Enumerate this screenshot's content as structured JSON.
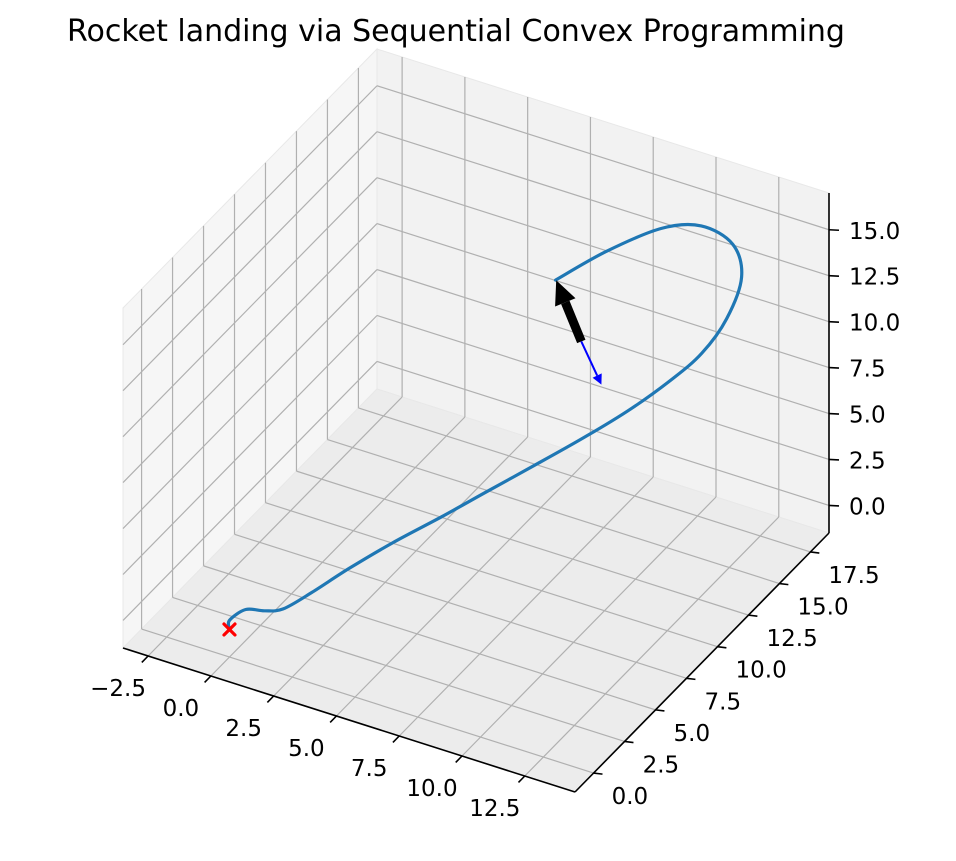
{
  "chart_data": {
    "type": "line3d",
    "title": "Rocket landing via Sequential Convex Programming",
    "xlabel": "",
    "ylabel": "",
    "zlabel": "",
    "xlim": [
      -3.5,
      14.5
    ],
    "ylim": [
      -1.5,
      19
    ],
    "zlim": [
      -1.5,
      17
    ],
    "x_ticks": [
      -2.5,
      0.0,
      2.5,
      5.0,
      7.5,
      10.0,
      12.5
    ],
    "x_tick_labels": [
      "−2.5",
      "0.0",
      "2.5",
      "5.0",
      "7.5",
      "10.0",
      "12.5"
    ],
    "y_ticks": [
      0.0,
      2.5,
      5.0,
      7.5,
      10.0,
      12.5,
      15.0,
      17.5
    ],
    "y_tick_labels": [
      "0.0",
      "2.5",
      "5.0",
      "7.5",
      "10.0",
      "12.5",
      "15.0",
      "17.5"
    ],
    "z_ticks": [
      0.0,
      2.5,
      5.0,
      7.5,
      10.0,
      12.5,
      15.0
    ],
    "z_tick_labels": [
      "0.0",
      "2.5",
      "5.0",
      "7.5",
      "10.0",
      "12.5",
      "15.0"
    ],
    "grid": true,
    "series": [
      {
        "type": "line",
        "color": "#1f77b4",
        "points": [
          [
            4.2,
            17.8,
            8.6
          ],
          [
            6.3,
            17.6,
            11.2
          ],
          [
            8.6,
            17.4,
            13.6
          ],
          [
            10.4,
            17.0,
            14.8
          ],
          [
            11.9,
            16.5,
            14.8
          ],
          [
            12.6,
            15.8,
            13.8
          ],
          [
            12.4,
            15.0,
            12.0
          ],
          [
            11.8,
            14.2,
            10.4
          ],
          [
            11.0,
            13.3,
            9.2
          ],
          [
            10.0,
            12.2,
            8.0
          ],
          [
            8.8,
            11.0,
            6.8
          ],
          [
            7.5,
            9.8,
            5.6
          ],
          [
            6.2,
            8.4,
            4.5
          ],
          [
            5.0,
            7.0,
            3.5
          ],
          [
            3.8,
            5.5,
            2.6
          ],
          [
            2.8,
            4.0,
            1.8
          ],
          [
            2.0,
            2.6,
            1.1
          ],
          [
            1.4,
            1.5,
            0.7
          ],
          [
            1.0,
            0.8,
            0.9
          ],
          [
            0.5,
            0.3,
            1.1
          ],
          [
            0.0,
            0.0,
            0.5
          ],
          [
            0.0,
            0.0,
            0.0
          ]
        ]
      }
    ],
    "markers": [
      {
        "type": "x",
        "color": "#ff0000",
        "point": [
          0.0,
          0.0,
          0.0
        ]
      }
    ],
    "arrows": [
      {
        "name": "thrust",
        "color": "#000000",
        "start": [
          7.3,
          13.6,
          9.5
        ],
        "end": [
          6.3,
          13.6,
          12.4
        ]
      },
      {
        "name": "attitude",
        "color": "#0000ff",
        "start": [
          7.3,
          13.6,
          9.5
        ],
        "end": [
          8.1,
          13.6,
          7.5
        ]
      }
    ]
  }
}
